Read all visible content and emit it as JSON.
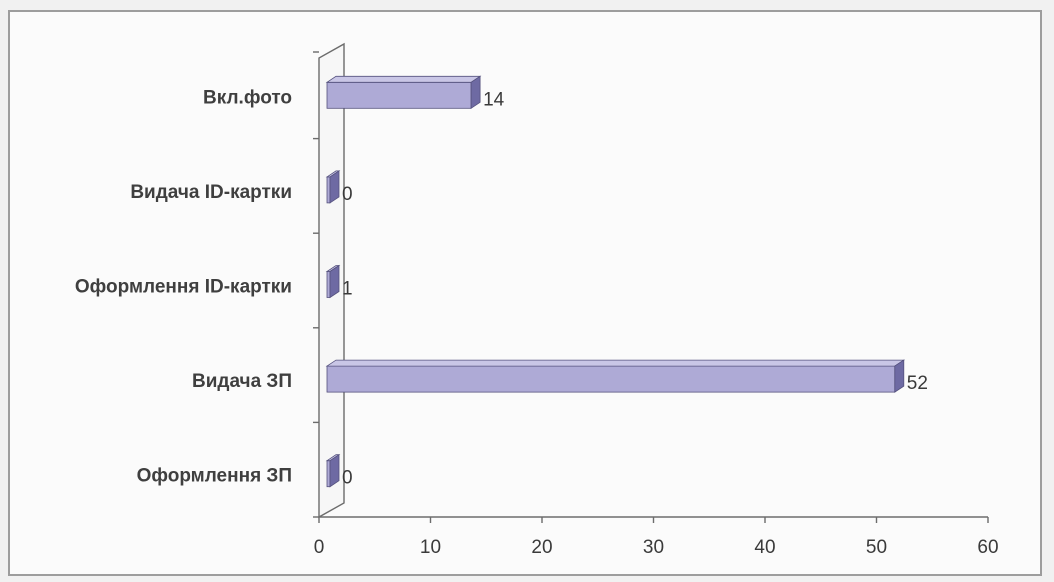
{
  "chart_data": {
    "type": "bar",
    "orientation": "horizontal",
    "three_d": true,
    "categories": [
      "Вкл.фото",
      "Видача  ID-картки",
      "Оформлення ID-картки",
      "Видача ЗП",
      "Оформлення ЗП"
    ],
    "values": [
      14,
      0,
      1,
      52,
      0
    ],
    "data_labels": [
      "14",
      "0",
      "1",
      "52",
      "0"
    ],
    "xlim": [
      0,
      60
    ],
    "x_ticks": [
      "0",
      "10",
      "20",
      "30",
      "40",
      "50",
      "60"
    ],
    "title": "",
    "xlabel": "",
    "ylabel": "",
    "grid": false,
    "legend": "none",
    "colors": {
      "bar_front": "#aeaad6",
      "bar_top": "#c9c6e6",
      "bar_side": "#6e6aa3",
      "bar_outline": "#55527e",
      "axis": "#6c6c6c",
      "frame": "#9d9d9d",
      "background": "#fbfbfb"
    }
  }
}
